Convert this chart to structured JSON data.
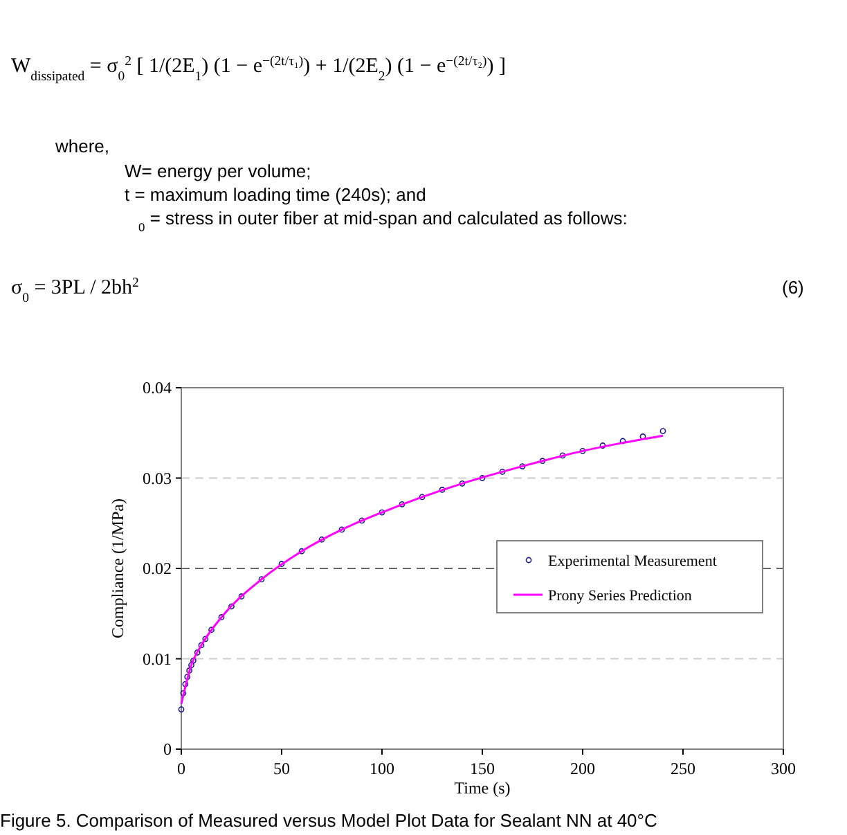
{
  "chart_data": {
    "type": "scatter",
    "xlabel": "Time (s)",
    "ylabel": "Compliance (1/MPa)",
    "annotations": [
      "W$_{dissipated}$ = σ$_{0}$$^{2}$ [ 1/(2E$_{1}$) (1 − e$^{−(2t/τ₁)}$) + 1/(2E$_{2}$) (1 − e$^{−(2t/τ₂)}$) ]",
      "where,",
      "W= energy per volume;",
      "t = maximum loading time (240s); and",
      "$_{0}$ = stress in outer fiber at mid-span and calculated as follows:",
      "σ$_{0}$ = 3PL / 2bh$^{2}$",
      "(6)",
      "Figure 5. Comparison of Measured versus Model Plot Data for Sealant NN at 40°C"
    ],
    "xlim": [
      0,
      300
    ],
    "xticks": [
      0,
      50,
      100,
      150,
      200,
      250,
      300
    ],
    "ylim": [
      0,
      0.04
    ],
    "yticks": [
      0,
      0.01,
      0.02,
      0.03,
      0.04
    ],
    "grid": "y",
    "legend": "right",
    "ref_lines": [
      {
        "axis": "y",
        "value": 0.02,
        "color": "#666666",
        "line_style": "dashed"
      }
    ],
    "series": [
      {
        "name": "Experimental Measurement",
        "marker": "circle",
        "color": "#1a1a8c",
        "x": [
          0,
          1,
          2,
          3,
          4,
          5,
          6,
          8,
          10,
          12,
          15,
          20,
          25,
          30,
          40,
          50,
          60,
          70,
          80,
          90,
          100,
          110,
          120,
          130,
          140,
          150,
          160,
          170,
          180,
          190,
          200,
          210,
          220,
          230,
          240
        ],
        "values": [
          0.0044,
          0.0062,
          0.0072,
          0.008,
          0.0087,
          0.0093,
          0.0098,
          0.0107,
          0.0115,
          0.0122,
          0.0132,
          0.0146,
          0.0158,
          0.0169,
          0.0188,
          0.0205,
          0.0219,
          0.0232,
          0.0243,
          0.0253,
          0.0262,
          0.0271,
          0.0279,
          0.0287,
          0.0294,
          0.03,
          0.0307,
          0.0313,
          0.0319,
          0.0325,
          0.033,
          0.0336,
          0.0341,
          0.0346,
          0.0352
        ]
      },
      {
        "name": "Prony Series Prediction",
        "type": "line",
        "line_style": "solid",
        "color": "#ff00ff",
        "x": [
          0,
          5,
          10,
          20,
          40,
          60,
          80,
          100,
          120,
          140,
          160,
          180,
          200,
          220,
          240
        ],
        "values": [
          0.005,
          0.0093,
          0.0115,
          0.0146,
          0.0188,
          0.0219,
          0.0243,
          0.0262,
          0.0279,
          0.0294,
          0.0307,
          0.0319,
          0.033,
          0.0339,
          0.0347
        ]
      }
    ]
  }
}
